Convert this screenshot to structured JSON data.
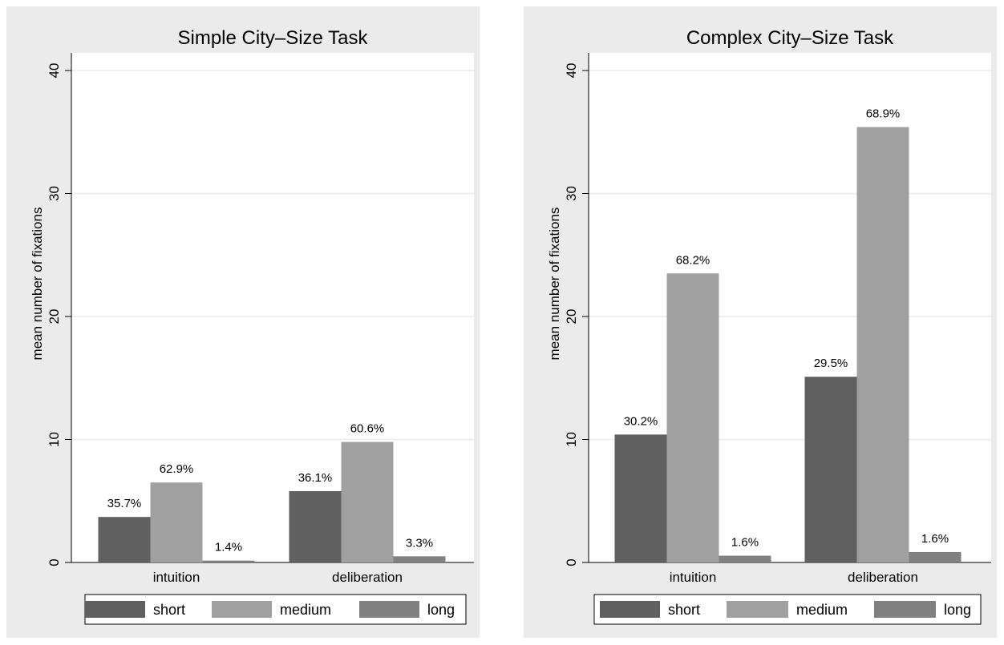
{
  "colors": {
    "short": "#606060",
    "medium": "#a0a0a0",
    "long": "#808080",
    "panel_bg": "#ebebeb",
    "plot_bg": "#ffffff",
    "grid": "#eaeaea"
  },
  "chart_data": [
    {
      "type": "bar",
      "title": "Simple City–Size Task",
      "ylabel": "mean number of fixations",
      "xlabel": "",
      "ylim": [
        0,
        40
      ],
      "yticks": [
        "0",
        "10",
        "20",
        "30",
        "40"
      ],
      "categories": [
        "intuition",
        "deliberation"
      ],
      "series": [
        {
          "name": "short",
          "values": [
            3.7,
            5.8
          ],
          "labels": [
            "35.7%",
            "36.1%"
          ]
        },
        {
          "name": "medium",
          "values": [
            6.5,
            9.8
          ],
          "labels": [
            "62.9%",
            "60.6%"
          ]
        },
        {
          "name": "long",
          "values": [
            0.15,
            0.5
          ],
          "labels": [
            "1.4%",
            "3.3%"
          ]
        }
      ],
      "grid": true,
      "legend_position": "bottom"
    },
    {
      "type": "bar",
      "title": "Complex City–Size Task",
      "ylabel": "mean number of fixations",
      "xlabel": "",
      "ylim": [
        0,
        40
      ],
      "yticks": [
        "0",
        "10",
        "20",
        "30",
        "40"
      ],
      "categories": [
        "intuition",
        "deliberation"
      ],
      "series": [
        {
          "name": "short",
          "values": [
            10.4,
            15.1
          ],
          "labels": [
            "30.2%",
            "29.5%"
          ]
        },
        {
          "name": "medium",
          "values": [
            23.5,
            35.4
          ],
          "labels": [
            "68.2%",
            "68.9%"
          ]
        },
        {
          "name": "long",
          "values": [
            0.55,
            0.85
          ],
          "labels": [
            "1.6%",
            "1.6%"
          ]
        }
      ],
      "grid": true,
      "legend_position": "bottom"
    }
  ]
}
